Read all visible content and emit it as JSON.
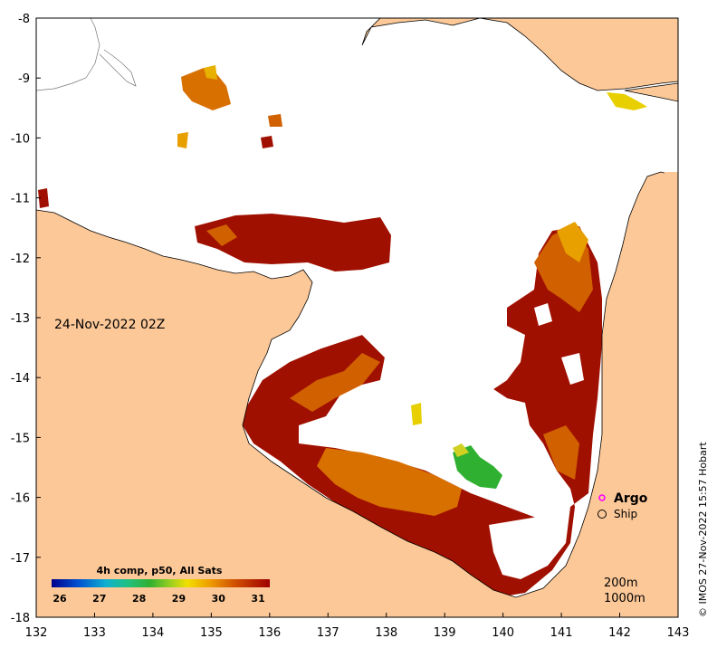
{
  "map": {
    "date_label": "24-Nov-2022 02Z",
    "credit": "© IMOS 27-Nov-2022 15:57 Hobart",
    "lon_ticks": [
      "132",
      "133",
      "134",
      "135",
      "136",
      "137",
      "138",
      "139",
      "140",
      "141",
      "142",
      "143"
    ],
    "lat_ticks": [
      "-8",
      "-9",
      "-10",
      "-11",
      "-12",
      "-13",
      "-14",
      "-15",
      "-16",
      "-17",
      "-18"
    ],
    "lon_range": [
      132,
      143
    ],
    "lat_range": [
      -18,
      -8
    ]
  },
  "legend": {
    "argo_label": "Argo",
    "ship_label": "Ship",
    "argo_color": "#ff00ff",
    "ship_color": "#000000"
  },
  "isobaths": {
    "label_200": "200m",
    "label_1000": "1000m"
  },
  "colorbar": {
    "title": "4h comp, p50, All Sats",
    "ticks": [
      "26",
      "27",
      "28",
      "29",
      "30",
      "31"
    ],
    "range": [
      26,
      31.5
    ],
    "colors": [
      "#00008b",
      "#0040c0",
      "#0090e0",
      "#20c0c0",
      "#30b030",
      "#90d020",
      "#f0e000",
      "#f0b000",
      "#e07000",
      "#c03000",
      "#a00000"
    ]
  },
  "colors": {
    "land": "#fcc898",
    "sea": "#ffffff",
    "sst_hot": "#a01000",
    "sst_warm": "#d06000",
    "sst_mid": "#e89000",
    "sst_yellow": "#e8d000",
    "sst_green": "#30b030"
  }
}
